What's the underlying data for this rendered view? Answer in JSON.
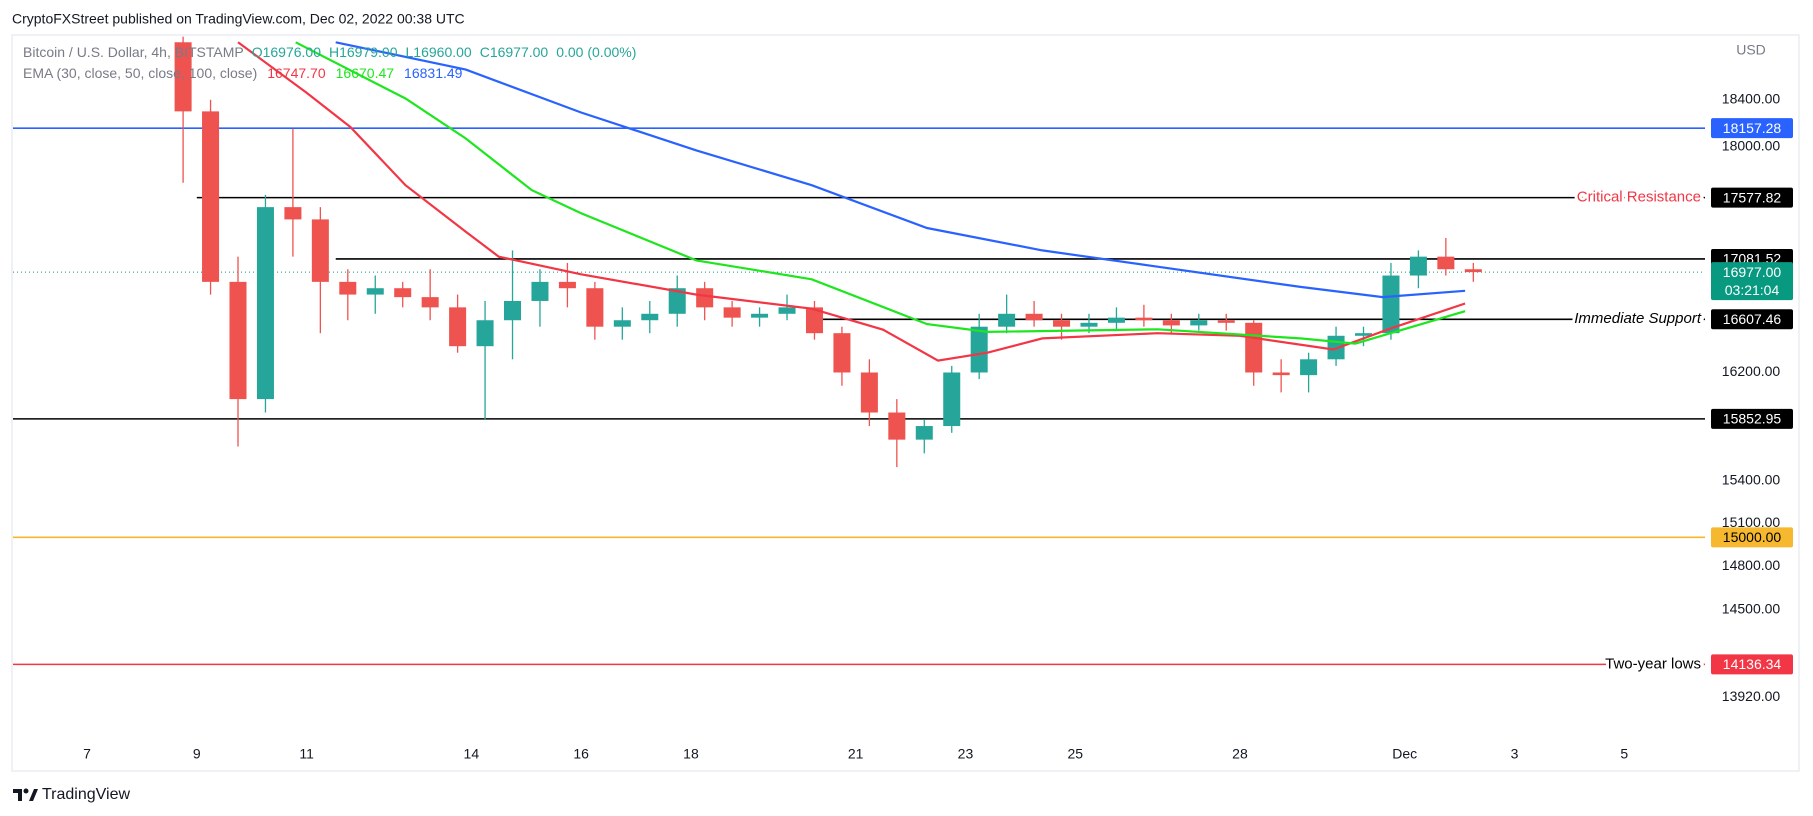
{
  "header": "CryptoFXStreet published on TradingView.com, Dec 02, 2022 00:38 UTC",
  "footer": "TradingView",
  "chart_data": {
    "type": "candlestick",
    "legend": {
      "symbol": "Bitcoin / U.S. Dollar, 4h, BITSTAMP",
      "ohlc": [
        "O16976.00",
        "H16979.00",
        "L16960.00",
        "C16977.00",
        "0.00 (0.00%)"
      ],
      "ema_label": "EMA (30, close, 50, close, 100, close)"
    },
    "y_unit": "USD",
    "log_scale": true,
    "xlim": [
      5.67,
      36.47
    ],
    "ylim": [
      13450,
      18920
    ],
    "xticks": [
      7,
      9,
      11,
      14,
      16,
      18,
      21,
      23,
      25,
      28,
      {
        "value": 31,
        "label": "Dec"
      },
      {
        "value": 33,
        "label": "3"
      },
      {
        "value": 35,
        "label": "5"
      }
    ],
    "yticks": [
      {
        "value": 18400,
        "label": "18400.00"
      },
      {
        "value": 18000,
        "label": "18000.00"
      },
      {
        "value": 16200,
        "label": "16200.00"
      },
      {
        "value": 15400,
        "label": "15400.00"
      },
      {
        "value": 15100,
        "label": "15100.00"
      },
      {
        "value": 14800,
        "label": "14800.00"
      },
      {
        "value": 14500,
        "label": "14500.00"
      },
      {
        "value": 13920,
        "label": "13920.00"
      }
    ],
    "up_color": "#26a69a",
    "down_color": "#ef5350",
    "candles": {
      "x": [
        8.75,
        9.25,
        9.75,
        10.25,
        10.75,
        11.25,
        11.75,
        12.25,
        12.75,
        13.25,
        13.75,
        14.25,
        14.75,
        15.25,
        15.75,
        16.25,
        16.75,
        17.25,
        17.75,
        18.25,
        18.75,
        19.25,
        19.75,
        20.25,
        20.75,
        21.25,
        21.75,
        22.25,
        22.75,
        23.25,
        23.75,
        24.25,
        24.75,
        25.25,
        25.75,
        26.25,
        26.75,
        27.25,
        27.75,
        28.25,
        28.75,
        29.25,
        29.75,
        30.25,
        30.75,
        31.25,
        31.75,
        32.25
      ],
      "open": [
        18900,
        18300,
        16900,
        16000,
        17500,
        17400,
        16900,
        16800,
        16850,
        16780,
        16700,
        16400,
        16600,
        16750,
        16900,
        16850,
        16550,
        16600,
        16650,
        16850,
        16700,
        16620,
        16650,
        16700,
        16500,
        16200,
        15900,
        15700,
        15800,
        16200,
        16550,
        16650,
        16600,
        16550,
        16580,
        16620,
        16600,
        16560,
        16600,
        16580,
        16200,
        16180,
        16300,
        16480,
        16500,
        16950,
        17100,
        17000
      ],
      "high": [
        18950,
        18400,
        17100,
        17600,
        18150,
        17500,
        17000,
        16950,
        16900,
        17000,
        16800,
        16750,
        17150,
        17000,
        17050,
        16900,
        16700,
        16750,
        16950,
        16900,
        16750,
        16700,
        16800,
        16750,
        16550,
        16300,
        16000,
        15850,
        16250,
        16650,
        16800,
        16750,
        16650,
        16650,
        16700,
        16720,
        16650,
        16650,
        16650,
        16600,
        16300,
        16350,
        16550,
        16550,
        17050,
        17150,
        17250,
        17050
      ],
      "low": [
        17700,
        16800,
        15650,
        15900,
        17100,
        16500,
        16600,
        16650,
        16700,
        16600,
        16350,
        15850,
        16300,
        16550,
        16700,
        16450,
        16450,
        16500,
        16550,
        16600,
        16550,
        16550,
        16600,
        16450,
        16100,
        15800,
        15500,
        15600,
        15750,
        16150,
        16500,
        16550,
        16450,
        16500,
        16520,
        16550,
        16500,
        16520,
        16520,
        16100,
        16050,
        16050,
        16250,
        16400,
        16450,
        16850,
        16950,
        16900
      ],
      "close": [
        18300,
        16900,
        16000,
        17500,
        17400,
        16900,
        16800,
        16850,
        16780,
        16700,
        16400,
        16600,
        16750,
        16900,
        16850,
        16550,
        16600,
        16650,
        16850,
        16700,
        16620,
        16650,
        16700,
        16500,
        16200,
        15900,
        15700,
        15800,
        16200,
        16550,
        16650,
        16600,
        16550,
        16580,
        16620,
        16600,
        16560,
        16600,
        16580,
        16200,
        16180,
        16300,
        16480,
        16500,
        16950,
        17100,
        17000,
        16977
      ]
    },
    "series": [
      {
        "name": "EMA 30",
        "color": "#f23645",
        "last_label": "16747.70",
        "x": [
          9.75,
          11.0,
          11.8,
          12.8,
          13.9,
          14.5,
          16.0,
          18.1,
          20.2,
          21.5,
          22.5,
          23.4,
          24.4,
          26.5,
          28.0,
          29.7,
          30.7,
          32.1
        ],
        "values": [
          18900,
          18460,
          18165,
          17680,
          17300,
          17100,
          16960,
          16800,
          16690,
          16527,
          16290,
          16350,
          16460,
          16500,
          16480,
          16375,
          16530,
          16730
        ]
      },
      {
        "name": "EMA 50",
        "color": "#1ee61e",
        "last_label": "16670.47",
        "x": [
          10.8,
          12.8,
          13.9,
          15.1,
          16.0,
          18.1,
          20.2,
          22.3,
          23.4,
          26.5,
          29.1,
          30.1,
          32.1
        ],
        "values": [
          18900,
          18410,
          18070,
          17640,
          17450,
          17070,
          16920,
          16570,
          16510,
          16530,
          16460,
          16420,
          16670
        ]
      },
      {
        "name": "EMA 100",
        "color": "#2962ff",
        "last_label": "16831.49",
        "x": [
          11.53,
          13.9,
          16.0,
          18.1,
          20.2,
          22.3,
          24.4,
          26.5,
          29.1,
          30.6,
          32.1
        ],
        "values": [
          18900,
          18660,
          18290,
          17970,
          17680,
          17330,
          17150,
          17020,
          16860,
          16780,
          16830
        ]
      }
    ],
    "levels": [
      {
        "value": 18157.28,
        "label": "18157.28",
        "color": "#2962ff",
        "text_color": "#ffffff"
      },
      {
        "value": 17577.82,
        "label": "17577.82",
        "color": "#000000",
        "text_color": "#ffffff",
        "start": 9.0,
        "note": "Critical Resistance",
        "note_color": "#f23645"
      },
      {
        "value": 17081.52,
        "label": "17081.52",
        "color": "#000000",
        "text_color": "#ffffff",
        "start": 11.53
      },
      {
        "value": 16607.46,
        "label": "16607.46",
        "color": "#000000",
        "text_color": "#ffffff",
        "start": 20.37,
        "note": "Immediate Support",
        "note_color": "#000000",
        "note_italic": true
      },
      {
        "value": 15852.95,
        "label": "15852.95",
        "color": "#000000",
        "text_color": "#ffffff"
      },
      {
        "value": 15000,
        "label": "15000.00",
        "color": "#f5b82e",
        "text_color": "#000000"
      },
      {
        "value": 14136.34,
        "label": "14136.34",
        "color": "#f23645",
        "text_color": "#ffffff",
        "note": "Two-year lows",
        "note_color": "#000000"
      }
    ],
    "current_price": {
      "value": 16977,
      "label": "16977.00",
      "countdown": "03:21:04",
      "color": "#089981"
    }
  }
}
